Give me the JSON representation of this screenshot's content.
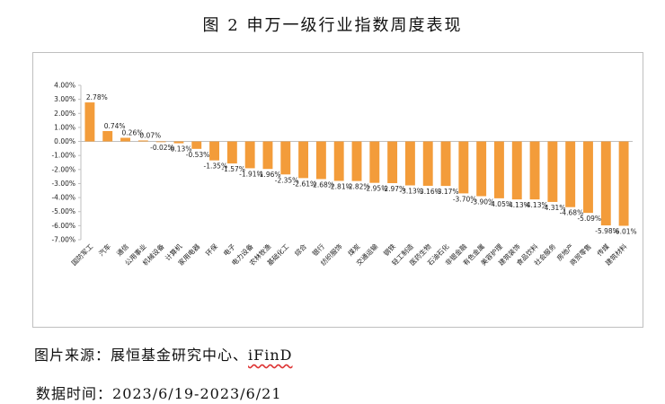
{
  "title": "图 2 申万一级行业指数周度表现",
  "source": {
    "prefix": "图片来源：展恒基金研究中心、",
    "ifind": "iFinD"
  },
  "period": {
    "label": "数据时间：",
    "value": "2023/6/19-2023/6/21"
  },
  "colors": {
    "bar": "#F39C3A",
    "axis": "#bfbfbf"
  },
  "chart_data": {
    "type": "bar",
    "categories": [
      "国防军工",
      "汽车",
      "通信",
      "公用事业",
      "机械设备",
      "计算机",
      "家用电器",
      "环保",
      "电子",
      "电力设备",
      "农林牧渔",
      "基础化工",
      "综合",
      "银行",
      "纺织服饰",
      "煤炭",
      "交通运输",
      "钢铁",
      "轻工制造",
      "医药生物",
      "石油石化",
      "非银金融",
      "有色金属",
      "美容护理",
      "建筑装饰",
      "食品饮料",
      "社会服务",
      "房地产",
      "商贸零售",
      "传媒",
      "建筑材料"
    ],
    "values": [
      2.78,
      0.74,
      0.26,
      0.07,
      -0.02,
      -0.13,
      -0.53,
      -1.35,
      -1.57,
      -1.91,
      -1.96,
      -2.35,
      -2.61,
      -2.68,
      -2.81,
      -2.82,
      -2.95,
      -2.97,
      -3.13,
      -3.16,
      -3.17,
      -3.7,
      -3.9,
      -4.05,
      -4.13,
      -4.13,
      -4.31,
      -4.68,
      -5.09,
      -5.98,
      -6.01
    ],
    "data_labels": [
      "2.78%",
      "0.74%",
      "0.26%",
      "0.07%",
      "-0.02%",
      "-0.13%",
      "-0.53%",
      "-1.35%",
      "-1.57%",
      "-1.91%",
      "-1.96%",
      "-2.35%",
      "-2.61%",
      "-2.68%",
      "-2.81%",
      "-2.82%",
      "-2.95%",
      "-2.97%",
      "-3.13%",
      "-3.16%",
      "-3.17%",
      "-3.70%",
      "-3.90%",
      "-4.05%",
      "-4.13%",
      "-4.13%",
      "-4.31%",
      "-4.68%",
      "-5.09%",
      "-5.98%",
      "-6.01%"
    ],
    "yticks": [
      "4.00%",
      "3.00%",
      "2.00%",
      "1.00%",
      "0.00%",
      "-1.00%",
      "-2.00%",
      "-3.00%",
      "-4.00%",
      "-5.00%",
      "-6.00%",
      "-7.00%"
    ],
    "ylim": [
      -7,
      4
    ],
    "grid": false,
    "legend": "none"
  }
}
